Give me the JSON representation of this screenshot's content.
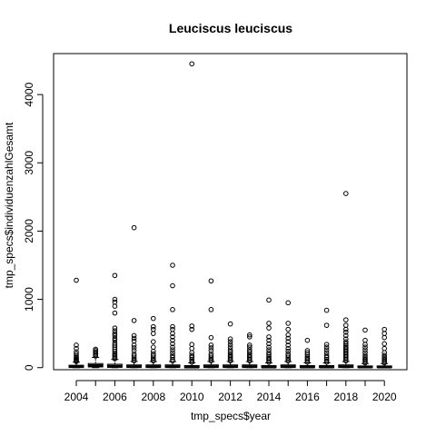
{
  "chart_data": {
    "type": "boxplot",
    "title": "Leuciscus leuciscus",
    "xlabel": "tmp_specs$year",
    "ylabel": "tmp_specs$individuenzahlGesamt",
    "ylim": [
      -30,
      4600
    ],
    "y_ticks": [
      0,
      1000,
      2000,
      3000,
      4000
    ],
    "x_tick_labels": [
      "2004",
      "2006",
      "2008",
      "2010",
      "2012",
      "2014",
      "2016",
      "2018",
      "2020"
    ],
    "categories": [
      "2004",
      "2005",
      "2006",
      "2007",
      "2008",
      "2009",
      "2010",
      "2011",
      "2012",
      "2013",
      "2014",
      "2015",
      "2016",
      "2017",
      "2018",
      "2019",
      "2020"
    ],
    "boxes": [
      {
        "year": "2004",
        "q1": 5,
        "median": 15,
        "q3": 35,
        "whisker_high": 80,
        "outliers": [
          90,
          100,
          110,
          120,
          135,
          150,
          170,
          200,
          230,
          280,
          330,
          1280
        ]
      },
      {
        "year": "2005",
        "q1": 10,
        "median": 30,
        "q3": 60,
        "whisker_high": 150,
        "outliers": [
          170,
          190,
          210,
          230,
          250,
          270
        ]
      },
      {
        "year": "2006",
        "q1": 5,
        "median": 20,
        "q3": 50,
        "whisker_high": 120,
        "outliers": [
          130,
          150,
          170,
          190,
          210,
          240,
          270,
          300,
          330,
          360,
          400,
          430,
          470,
          500,
          540,
          580,
          800,
          900,
          960,
          1000,
          1350
        ]
      },
      {
        "year": "2007",
        "q1": 5,
        "median": 15,
        "q3": 40,
        "whisker_high": 90,
        "outliers": [
          100,
          120,
          140,
          170,
          200,
          250,
          290,
          330,
          390,
          430,
          470,
          690,
          2050
        ]
      },
      {
        "year": "2008",
        "q1": 5,
        "median": 15,
        "q3": 40,
        "whisker_high": 90,
        "outliers": [
          100,
          120,
          140,
          170,
          200,
          240,
          300,
          380,
          500,
          560,
          600,
          720
        ]
      },
      {
        "year": "2009",
        "q1": 5,
        "median": 15,
        "q3": 40,
        "whisker_high": 90,
        "outliers": [
          100,
          120,
          150,
          180,
          220,
          260,
          300,
          350,
          400,
          450,
          500,
          560,
          600,
          850,
          1200,
          1500
        ]
      },
      {
        "year": "2010",
        "q1": 3,
        "median": 10,
        "q3": 30,
        "whisker_high": 70,
        "outliers": [
          80,
          100,
          120,
          150,
          180,
          220,
          280,
          340,
          560,
          610,
          4450
        ]
      },
      {
        "year": "2011",
        "q1": 5,
        "median": 15,
        "q3": 40,
        "whisker_high": 90,
        "outliers": [
          100,
          120,
          140,
          170,
          200,
          250,
          290,
          330,
          440,
          850,
          1270
        ]
      },
      {
        "year": "2012",
        "q1": 5,
        "median": 15,
        "q3": 40,
        "whisker_high": 90,
        "outliers": [
          100,
          120,
          140,
          160,
          180,
          200,
          230,
          260,
          300,
          340,
          380,
          420,
          640
        ]
      },
      {
        "year": "2013",
        "q1": 5,
        "median": 15,
        "q3": 40,
        "whisker_high": 90,
        "outliers": [
          100,
          120,
          140,
          160,
          180,
          200,
          230,
          260,
          300,
          330,
          450,
          480
        ]
      },
      {
        "year": "2014",
        "q1": 3,
        "median": 10,
        "q3": 30,
        "whisker_high": 70,
        "outliers": [
          80,
          100,
          120,
          140,
          160,
          190,
          220,
          260,
          300,
          350,
          400,
          450,
          580,
          650,
          990
        ]
      },
      {
        "year": "2015",
        "q1": 5,
        "median": 15,
        "q3": 40,
        "whisker_high": 90,
        "outliers": [
          100,
          120,
          140,
          170,
          200,
          240,
          280,
          330,
          380,
          430,
          480,
          560,
          650,
          950
        ]
      },
      {
        "year": "2016",
        "q1": 3,
        "median": 10,
        "q3": 30,
        "whisker_high": 70,
        "outliers": [
          80,
          100,
          120,
          140,
          160,
          190,
          220,
          250,
          400
        ]
      },
      {
        "year": "2017",
        "q1": 3,
        "median": 10,
        "q3": 30,
        "whisker_high": 70,
        "outliers": [
          80,
          100,
          120,
          150,
          180,
          220,
          260,
          300,
          340,
          620,
          840
        ]
      },
      {
        "year": "2018",
        "q1": 5,
        "median": 15,
        "q3": 40,
        "whisker_high": 90,
        "outliers": [
          100,
          120,
          140,
          160,
          180,
          200,
          220,
          240,
          260,
          280,
          300,
          320,
          350,
          380,
          420,
          470,
          520,
          560,
          620,
          700,
          2550
        ]
      },
      {
        "year": "2019",
        "q1": 3,
        "median": 10,
        "q3": 25,
        "whisker_high": 60,
        "outliers": [
          70,
          90,
          110,
          130,
          150,
          180,
          220,
          260,
          300,
          340,
          400,
          550
        ]
      },
      {
        "year": "2020",
        "q1": 3,
        "median": 10,
        "q3": 25,
        "whisker_high": 60,
        "outliers": [
          70,
          90,
          110,
          130,
          150,
          180,
          220,
          280,
          350,
          440,
          500,
          560
        ]
      }
    ],
    "grid": false,
    "legend": "none"
  }
}
